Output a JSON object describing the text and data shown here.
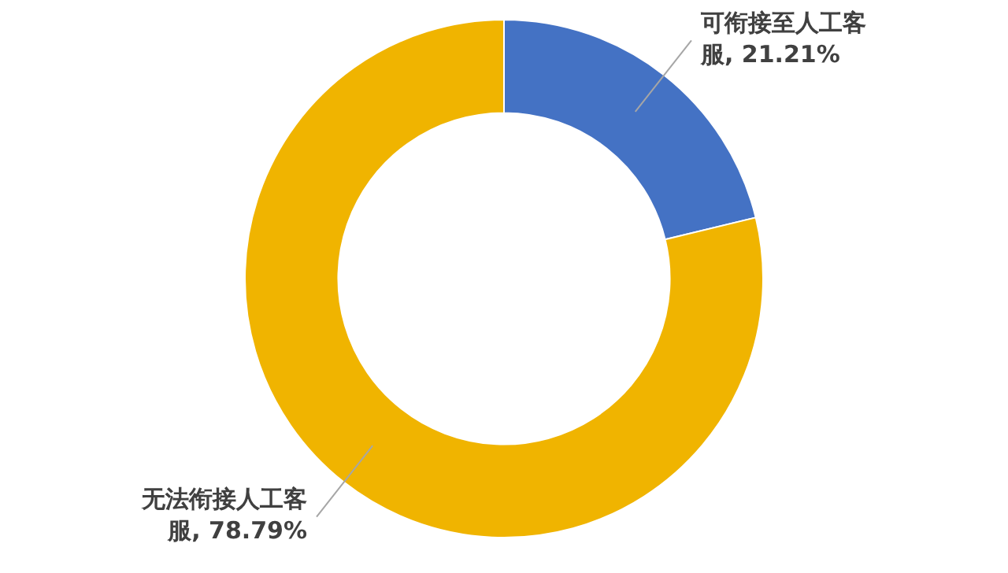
{
  "chart_data": {
    "type": "donut",
    "categories": [
      "可衔接至人工客服",
      "无法衔接人工客服"
    ],
    "values": [
      21.21,
      78.79
    ],
    "colors": [
      "#4472c4",
      "#f0b400"
    ],
    "value_labels": [
      "21.21%",
      "78.79%"
    ],
    "legend": false
  }
}
